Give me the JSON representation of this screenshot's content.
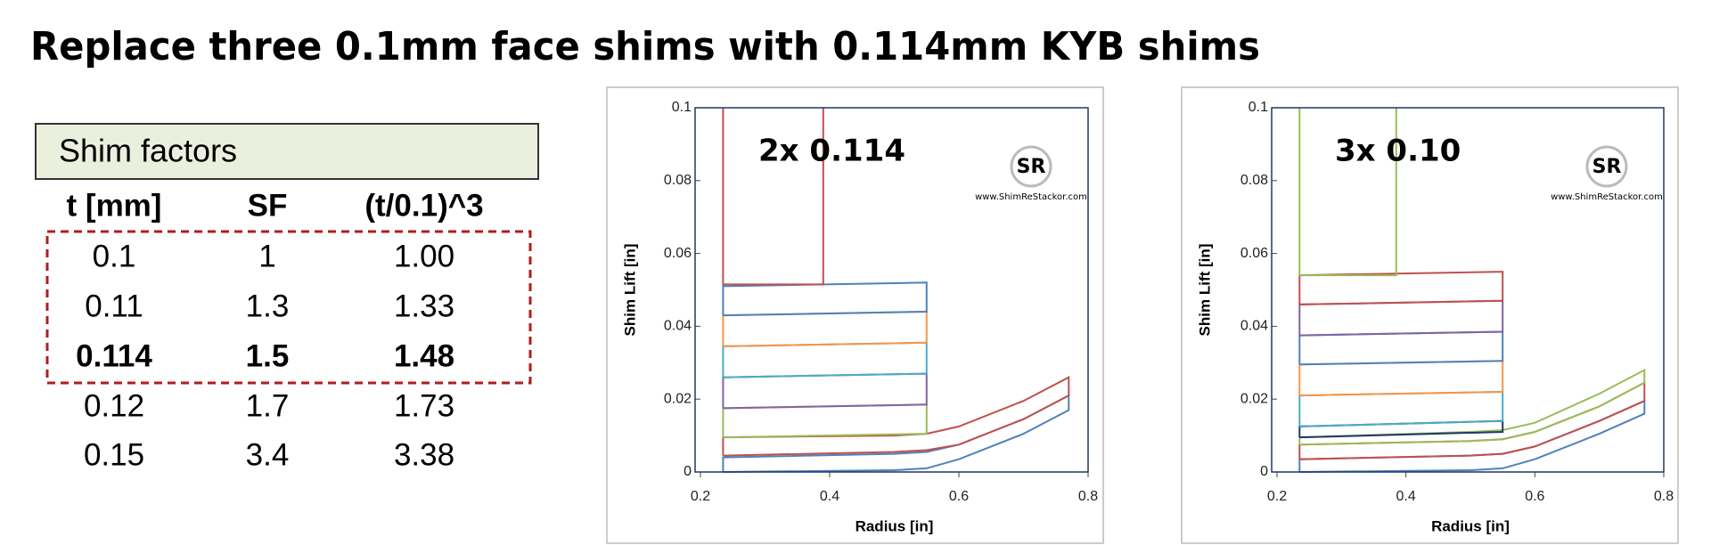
{
  "title": "Replace three 0.1mm face shims with 0.114mm KYB shims",
  "table": {
    "title": "Shim factors",
    "headers": [
      "t [mm]",
      "SF",
      "(t/0.1)^3"
    ],
    "rows": [
      [
        "0.1",
        "1",
        "1.00"
      ],
      [
        "0.11",
        "1.3",
        "1.33"
      ],
      [
        "0.114",
        "1.5",
        "1.48"
      ],
      [
        "0.12",
        "1.7",
        "1.73"
      ],
      [
        "0.15",
        "3.4",
        "3.38"
      ]
    ]
  },
  "chart_data": [
    {
      "type": "line",
      "annotation": "2x 0.114",
      "watermark": "www.ShimReStackor.com",
      "watermark_logo": "SR",
      "x_label": "Radius [in]",
      "y_label": "Shim Lift [in]",
      "xlim": [
        0.2,
        0.8
      ],
      "xticks": [
        0.2,
        0.4,
        0.6,
        0.8
      ],
      "ylim": [
        0,
        0.1
      ],
      "yticks": [
        0,
        0.02,
        0.04,
        0.06,
        0.08,
        0.1
      ],
      "series": [
        {
          "color": "#4f81bd",
          "x": [
            0.235,
            0.5,
            0.55,
            0.6,
            0.7,
            0.77,
            0.77,
            0.7,
            0.6,
            0.55,
            0.5,
            0.235,
            0.235
          ],
          "values": [
            0,
            0.0005,
            0.001,
            0.0035,
            0.0105,
            0.017,
            0.021,
            0.0145,
            0.0075,
            0.0055,
            0.005,
            0.004,
            0
          ]
        },
        {
          "color": "#c0504d",
          "x": [
            0.235,
            0.5,
            0.55,
            0.6,
            0.7,
            0.77,
            0.77,
            0.7,
            0.6,
            0.55,
            0.5,
            0.235,
            0.235
          ],
          "values": [
            0.0045,
            0.0055,
            0.006,
            0.0075,
            0.0145,
            0.021,
            0.026,
            0.0195,
            0.0125,
            0.0105,
            0.01,
            0.0095,
            0.0045
          ]
        },
        {
          "color": "#9bbb59",
          "x": [
            0.235,
            0.55,
            0.55,
            0.235,
            0.235
          ],
          "values": [
            0.0095,
            0.0105,
            0.0185,
            0.0175,
            0.0095
          ]
        },
        {
          "color": "#8064a2",
          "x": [
            0.235,
            0.55,
            0.55,
            0.235,
            0.235
          ],
          "values": [
            0.0175,
            0.0185,
            0.027,
            0.026,
            0.0175
          ]
        },
        {
          "color": "#4bacc6",
          "x": [
            0.235,
            0.55,
            0.55,
            0.235,
            0.235
          ],
          "values": [
            0.026,
            0.027,
            0.0355,
            0.0345,
            0.026
          ]
        },
        {
          "color": "#f79646",
          "x": [
            0.235,
            0.55,
            0.55,
            0.235,
            0.235
          ],
          "values": [
            0.0345,
            0.0355,
            0.044,
            0.043,
            0.0345
          ]
        },
        {
          "color": "#4f81bd",
          "x": [
            0.235,
            0.55,
            0.55,
            0.235,
            0.235
          ],
          "values": [
            0.043,
            0.044,
            0.052,
            0.051,
            0.043
          ]
        },
        {
          "color": "#c0504d",
          "x": [
            0.235,
            0.235,
            0.39,
            0.39
          ],
          "values": [
            0.1,
            0.0515,
            0.0515,
            0.1
          ]
        }
      ]
    },
    {
      "type": "line",
      "annotation": "3x 0.10",
      "watermark": "www.ShimReStackor.com",
      "watermark_logo": "SR",
      "x_label": "Radius [in]",
      "y_label": "Shim Lift [in]",
      "xlim": [
        0.2,
        0.8
      ],
      "xticks": [
        0.2,
        0.4,
        0.6,
        0.8
      ],
      "ylim": [
        0,
        0.1
      ],
      "yticks": [
        0,
        0.02,
        0.04,
        0.06,
        0.08,
        0.1
      ],
      "series": [
        {
          "color": "#4f81bd",
          "x": [
            0.235,
            0.5,
            0.55,
            0.6,
            0.7,
            0.77,
            0.77,
            0.7,
            0.6,
            0.55,
            0.5,
            0.235,
            0.235
          ],
          "values": [
            0,
            0.0005,
            0.001,
            0.0035,
            0.0105,
            0.016,
            0.0195,
            0.014,
            0.007,
            0.005,
            0.0045,
            0.0035,
            0
          ]
        },
        {
          "color": "#c0504d",
          "x": [
            0.235,
            0.5,
            0.55,
            0.6,
            0.7,
            0.77,
            0.77,
            0.7,
            0.6,
            0.55,
            0.5,
            0.235,
            0.235
          ],
          "values": [
            0.0035,
            0.0045,
            0.005,
            0.007,
            0.014,
            0.0195,
            0.0245,
            0.018,
            0.011,
            0.009,
            0.0085,
            0.0075,
            0.0035
          ]
        },
        {
          "color": "#9bbb59",
          "x": [
            0.235,
            0.5,
            0.55,
            0.6,
            0.7,
            0.77,
            0.77,
            0.7,
            0.6,
            0.55,
            0.5,
            0.235,
            0.235
          ],
          "values": [
            0.0075,
            0.0085,
            0.009,
            0.011,
            0.018,
            0.0245,
            0.028,
            0.0215,
            0.0135,
            0.0115,
            0.011,
            0.0095,
            0.0075
          ]
        },
        {
          "color": "#1f3864",
          "x": [
            0.235,
            0.55,
            0.55,
            0.235,
            0.235
          ],
          "values": [
            0.0095,
            0.011,
            0.014,
            0.0125,
            0.0095
          ]
        },
        {
          "color": "#4bacc6",
          "x": [
            0.235,
            0.55,
            0.55,
            0.235,
            0.235
          ],
          "values": [
            0.0125,
            0.014,
            0.022,
            0.021,
            0.0125
          ]
        },
        {
          "color": "#f79646",
          "x": [
            0.235,
            0.55,
            0.55,
            0.235,
            0.235
          ],
          "values": [
            0.021,
            0.022,
            0.0305,
            0.0295,
            0.021
          ]
        },
        {
          "color": "#4f81bd",
          "x": [
            0.235,
            0.55,
            0.55,
            0.235,
            0.235
          ],
          "values": [
            0.0295,
            0.0305,
            0.0385,
            0.0375,
            0.0295
          ]
        },
        {
          "color": "#8064a2",
          "x": [
            0.235,
            0.55,
            0.55,
            0.235,
            0.235
          ],
          "values": [
            0.0375,
            0.0385,
            0.047,
            0.046,
            0.0375
          ]
        },
        {
          "color": "#c0504d",
          "x": [
            0.235,
            0.55,
            0.55,
            0.235,
            0.235
          ],
          "values": [
            0.046,
            0.047,
            0.055,
            0.054,
            0.046
          ]
        },
        {
          "color": "#9bbb59",
          "x": [
            0.235,
            0.235,
            0.385,
            0.385
          ],
          "values": [
            0.1,
            0.054,
            0.054,
            0.1
          ]
        }
      ]
    }
  ]
}
